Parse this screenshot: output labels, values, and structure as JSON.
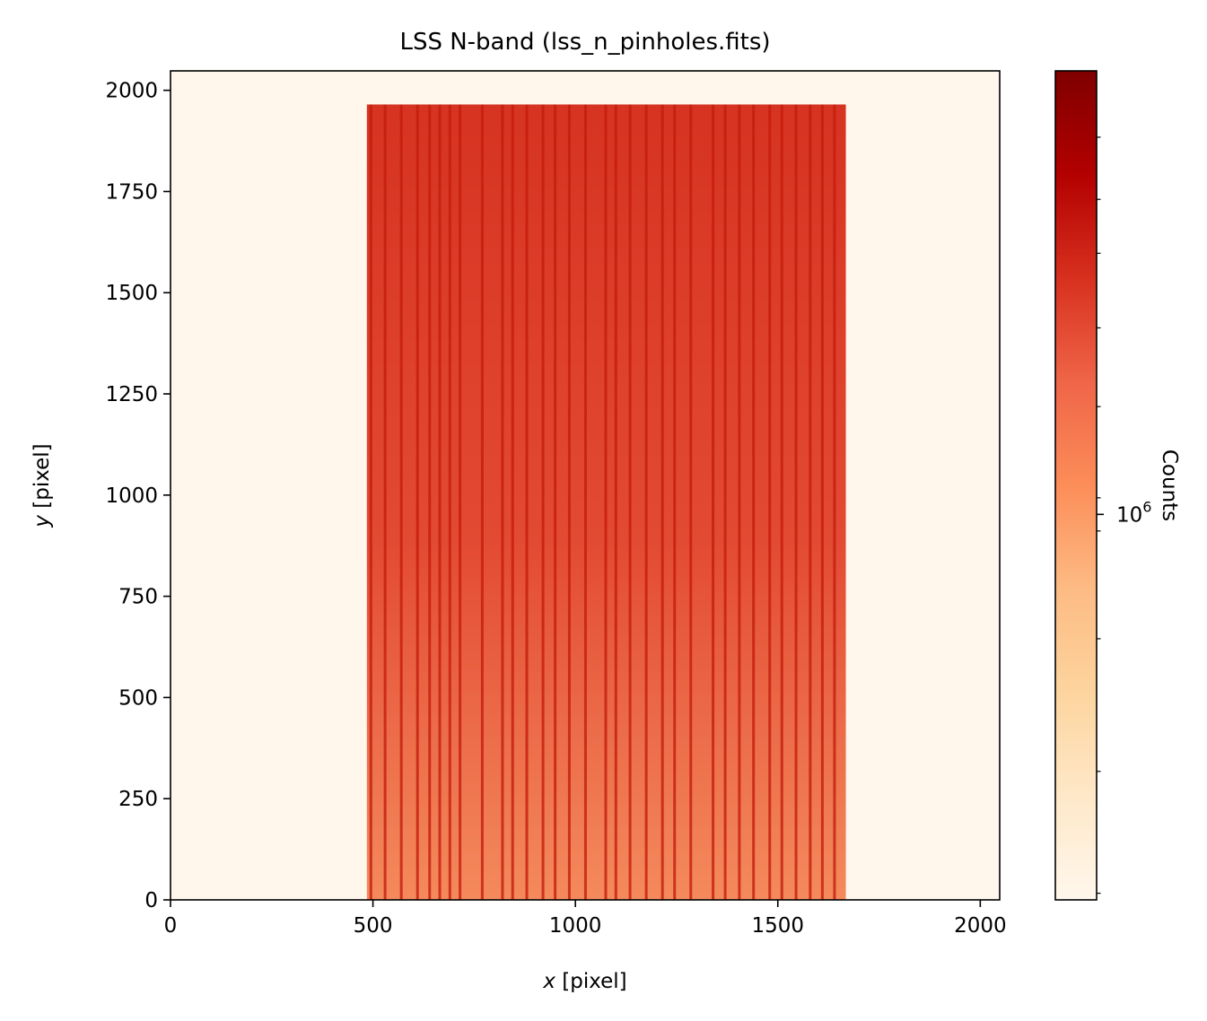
{
  "chart_data": {
    "type": "heatmap",
    "title": "LSS N-band (lss_n_pinholes.fits)",
    "xlabel": {
      "var": "x",
      "unit": " [pixel]"
    },
    "ylabel": {
      "var": "y",
      "unit": " [pixel]"
    },
    "xlim": [
      0,
      2048
    ],
    "ylim": [
      0,
      2048
    ],
    "xticks": [
      0,
      500,
      1000,
      1500,
      2000
    ],
    "yticks": [
      0,
      250,
      500,
      750,
      1000,
      1250,
      1500,
      1750,
      2000
    ],
    "colormap": "OrRd",
    "colormap_stops": [
      "#fff7ec",
      "#fee8c8",
      "#fdd49e",
      "#fdbb84",
      "#fc8d59",
      "#ef6548",
      "#d7301f",
      "#b30000",
      "#7f0000"
    ],
    "background_color": "#fff7ec",
    "illuminated_region": {
      "x_range": [
        485,
        1668
      ],
      "y_range": [
        0,
        1965
      ],
      "top_color": "#d73322",
      "middle_color": "#e34a33",
      "bottom_color": "#f48a5c"
    },
    "stripe_color": "#c41d0d",
    "stripe_x": [
      495,
      530,
      570,
      610,
      640,
      665,
      690,
      715,
      770,
      820,
      845,
      880,
      920,
      950,
      985,
      1025,
      1075,
      1100,
      1135,
      1175,
      1215,
      1245,
      1285,
      1340,
      1370,
      1405,
      1440,
      1480,
      1510,
      1545,
      1580,
      1610,
      1640
    ],
    "colorbar": {
      "label": "Counts",
      "scale": "log",
      "major_tick_label": {
        "base": "10",
        "exponent": "6"
      },
      "major_tick_position": 0.465,
      "minor_tick_positions": [
        0.008,
        0.155,
        0.315,
        0.445,
        0.485,
        0.595,
        0.69,
        0.78,
        0.845,
        0.92
      ]
    }
  }
}
